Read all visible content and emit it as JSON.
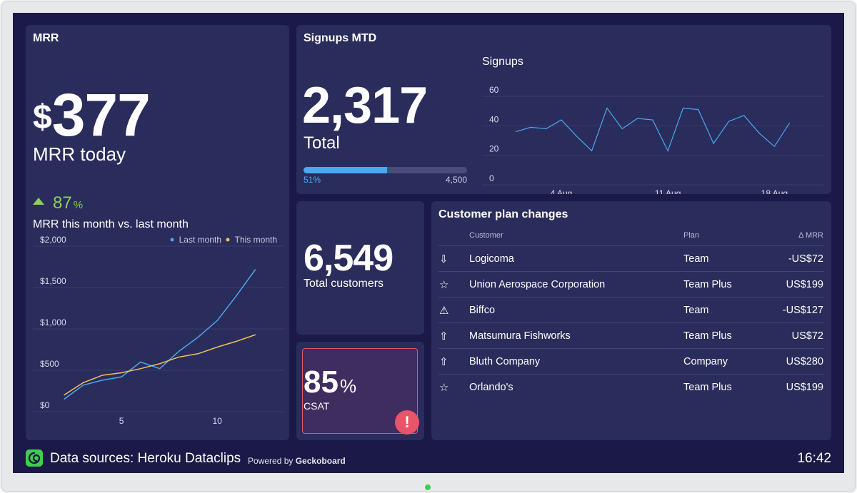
{
  "mrr": {
    "title": "MRR",
    "currency": "$",
    "value": "377",
    "caption": "MRR today",
    "change": "87",
    "change_unit": "%",
    "chart_title": "MRR this month vs. last month"
  },
  "signups": {
    "title": "Signups MTD",
    "total": "2,317",
    "total_label": "Total",
    "progress": 0.51,
    "progress_label": "51%",
    "goal_label": "4,500",
    "chart_title": "Signups"
  },
  "customers": {
    "value": "6,549",
    "label": "Total customers"
  },
  "csat": {
    "value": "85",
    "unit": "%",
    "label": "CSAT",
    "alert_icon": "exclamation-icon"
  },
  "plan_changes": {
    "title": "Customer plan changes",
    "headers": {
      "customer": "Customer",
      "plan": "Plan",
      "delta": "Δ MRR"
    },
    "rows": [
      {
        "icon": "downgrade-arrow-icon",
        "glyph": "⇩",
        "customer": "Logicoma",
        "plan": "Team",
        "delta": "-US$72"
      },
      {
        "icon": "star-icon",
        "glyph": "☆",
        "customer": "Union Aerospace Corporation",
        "plan": "Team Plus",
        "delta": "US$199"
      },
      {
        "icon": "warning-icon",
        "glyph": "⚠",
        "customer": "Biffco",
        "plan": "Team",
        "delta": "-US$127"
      },
      {
        "icon": "upgrade-arrow-icon",
        "glyph": "⇧",
        "customer": "Matsumura Fishworks",
        "plan": "Team Plus",
        "delta": "US$72"
      },
      {
        "icon": "upgrade-arrow-icon",
        "glyph": "⇧",
        "customer": "Bluth Company",
        "plan": "Company",
        "delta": "US$280"
      },
      {
        "icon": "star-icon",
        "glyph": "☆",
        "customer": "Orlando's",
        "plan": "Team Plus",
        "delta": "US$199"
      }
    ]
  },
  "footer": {
    "logo_icon": "geckoboard-logo-icon",
    "data_sources": "Data sources: Heroku Dataclips",
    "powered_by": "Powered by",
    "brand": "Geckoboard",
    "clock": "16:42"
  },
  "colors": {
    "background": "#1b1947",
    "card": "#2a2c5b",
    "positive": "#8ecf5c",
    "last_month": "#4aa9f0",
    "this_month": "#f0c35a",
    "signups_line": "#4aa9f0",
    "alert": "#e9546b"
  },
  "chart_data": [
    {
      "type": "line",
      "title": "MRR this month vs. last month",
      "x": [
        2,
        3,
        4,
        5,
        6,
        7,
        8,
        9,
        10,
        11,
        12
      ],
      "xticks": [
        5,
        10
      ],
      "xlim": [
        0,
        13.5
      ],
      "ylim": [
        0,
        2000
      ],
      "yticks": [
        0,
        500,
        1000,
        1500,
        2000
      ],
      "yticklabels": [
        "$0",
        "$500",
        "$1,000",
        "$1,500",
        "$2,000"
      ],
      "legend_position": "top-right",
      "series": [
        {
          "name": "Last month",
          "color": "#4aa9f0",
          "values": [
            150,
            320,
            380,
            420,
            600,
            520,
            730,
            900,
            1100,
            1400,
            1720
          ]
        },
        {
          "name": "This month",
          "color": "#f0c35a",
          "values": [
            200,
            350,
            440,
            470,
            520,
            580,
            660,
            700,
            780,
            850,
            930
          ]
        }
      ]
    },
    {
      "type": "line",
      "title": "Signups",
      "x": [
        1,
        2,
        3,
        4,
        5,
        6,
        7,
        8,
        9,
        10,
        11,
        12,
        13,
        14,
        15,
        16,
        17,
        18,
        19,
        20
      ],
      "xticks": [
        4,
        11,
        18
      ],
      "xticklabels": [
        "4 Aug",
        "11 Aug",
        "18 Aug"
      ],
      "ylim": [
        0,
        60
      ],
      "yticks": [
        0,
        20,
        40,
        60
      ],
      "series": [
        {
          "name": "Signups",
          "color": "#4aa9f0",
          "values": [
            36,
            39,
            38,
            44,
            33,
            23,
            52,
            38,
            45,
            44,
            23,
            52,
            51,
            28,
            43,
            47,
            35,
            26,
            42,
            null
          ]
        }
      ]
    }
  ]
}
